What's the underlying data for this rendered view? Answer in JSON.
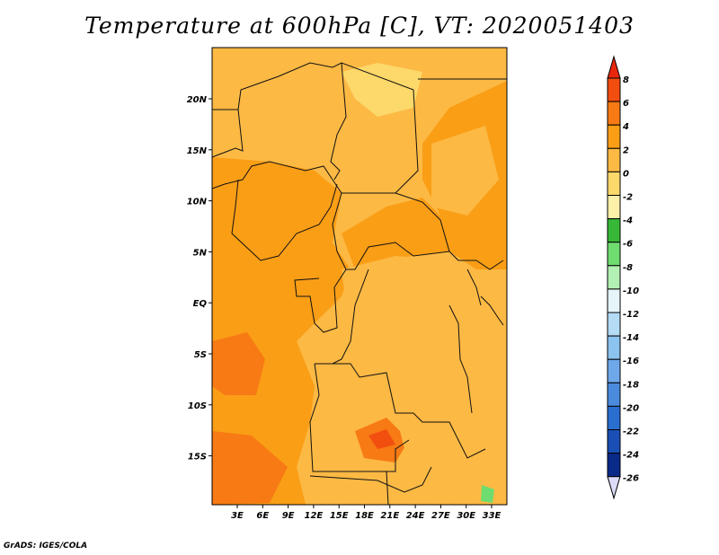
{
  "title": "Temperature at 600hPa [C], VT: 2020051403",
  "credit": "GrADS: IGES/COLA",
  "map": {
    "lat_ticks": [
      "20N",
      "15N",
      "10N",
      "5N",
      "EQ",
      "5S",
      "10S",
      "15S"
    ],
    "lon_ticks": [
      "3E",
      "6E",
      "9E",
      "12E",
      "15E",
      "18E",
      "21E",
      "24E",
      "27E",
      "30E",
      "33E"
    ]
  },
  "colorbar": {
    "labels": [
      "8",
      "6",
      "4",
      "2",
      "0",
      "-2",
      "-4",
      "-6",
      "-8",
      "-10",
      "-12",
      "-14",
      "-16",
      "-18",
      "-20",
      "-22",
      "-24",
      "-26"
    ],
    "colors": [
      "#e8270e",
      "#f24e10",
      "#f77a14",
      "#fa9e16",
      "#fcb944",
      "#fdd86a",
      "#fdf0a8",
      "#37b937",
      "#6fdc6f",
      "#b3f0b3",
      "#e6f5fa",
      "#b4dcf5",
      "#8cc3ef",
      "#6ea8ea",
      "#4a8bde",
      "#2a6ed0",
      "#1a4fb5",
      "#0a2a8a",
      "#060a5a"
    ],
    "under_color": "#dcdcf8",
    "over_color": "#e8270e"
  }
}
